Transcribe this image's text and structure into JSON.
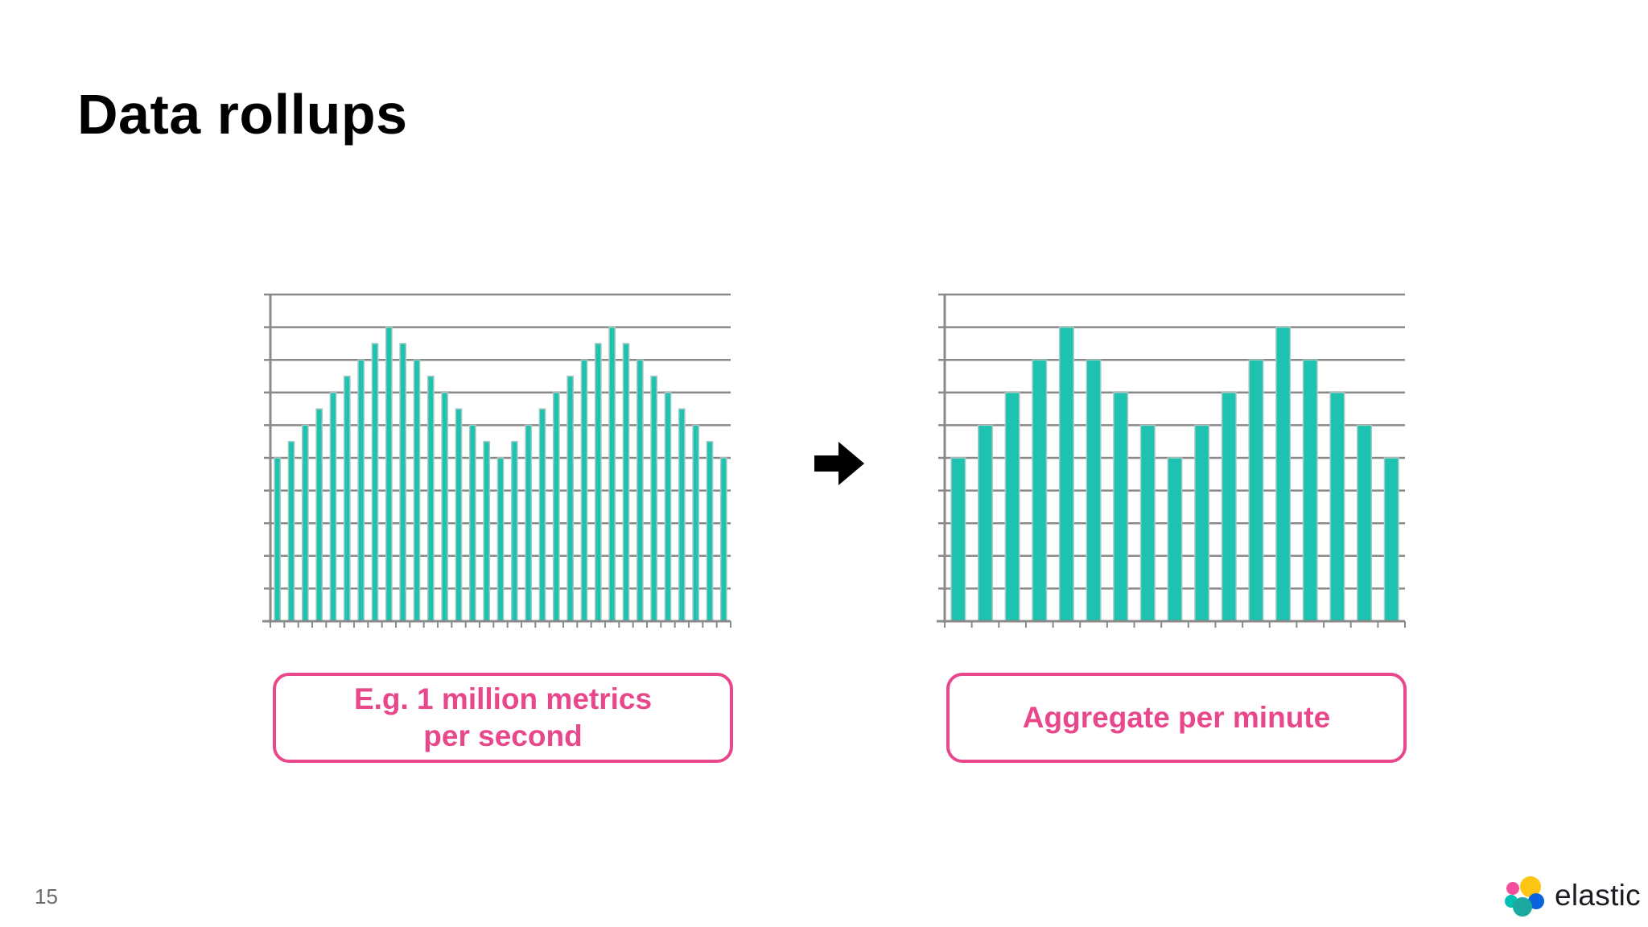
{
  "slide": {
    "title": "Data rollups",
    "page_number": "15",
    "brand_name": "elastic"
  },
  "callouts": {
    "left": [
      "E.g. 1 million metrics",
      "per second"
    ],
    "right": "Aggregate per minute"
  },
  "colors": {
    "bar": "#1ec2b0",
    "bar_outline": "#a9c9c4",
    "grid": "#8a8a8a",
    "callout": "#e8478b",
    "arrow": "#000000"
  },
  "icons": {
    "transition": "arrow-right-icon",
    "brand": "elastic-logo-icon"
  },
  "chart_data": [
    {
      "type": "bar",
      "title": "",
      "xlabel": "",
      "ylabel": "",
      "ylim": [
        0,
        10
      ],
      "grid": true,
      "series": [
        {
          "values": [
            5,
            5.5,
            6,
            6.5,
            7,
            7.5,
            8,
            8.5,
            9,
            8.5,
            8,
            7.5,
            7,
            6.5,
            6,
            5.5,
            5,
            5.5,
            6,
            6.5,
            7,
            7.5,
            8,
            8.5,
            9,
            8.5,
            8,
            7.5,
            7,
            6.5,
            6,
            5.5,
            5
          ]
        }
      ]
    },
    {
      "type": "bar",
      "title": "",
      "xlabel": "",
      "ylabel": "",
      "ylim": [
        0,
        10
      ],
      "grid": true,
      "series": [
        {
          "values": [
            5,
            6,
            7,
            8,
            9,
            8,
            7,
            6,
            5,
            6,
            7,
            8,
            9,
            8,
            7,
            6,
            5
          ]
        }
      ]
    }
  ]
}
